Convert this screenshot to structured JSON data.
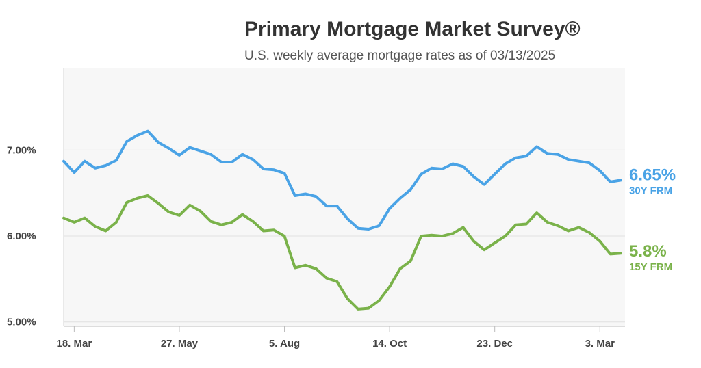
{
  "chart_data": {
    "type": "line",
    "title": "Primary Mortgage Market Survey®",
    "subtitle": "U.S. weekly average mortgage rates as of 03/13/2025",
    "ylim": [
      4.95,
      7.95
    ],
    "yticks": [
      5.0,
      6.0,
      7.0
    ],
    "ytick_labels": [
      "5.00%",
      "6.00%",
      "7.00%"
    ],
    "xtick_labels": [
      "18. Mar",
      "27. May",
      "5. Aug",
      "14. Oct",
      "23. Dec",
      "3. Mar"
    ],
    "xtick_index": [
      1,
      11,
      21,
      31,
      41,
      51
    ],
    "grid": true,
    "series": [
      {
        "name": "30Y FRM",
        "end_value": "6.65%",
        "color": "#4aa3e6",
        "values": [
          6.87,
          6.74,
          6.87,
          6.79,
          6.82,
          6.88,
          7.1,
          7.17,
          7.22,
          7.09,
          7.02,
          6.94,
          7.03,
          6.99,
          6.95,
          6.86,
          6.86,
          6.95,
          6.89,
          6.78,
          6.77,
          6.73,
          6.47,
          6.49,
          6.46,
          6.35,
          6.35,
          6.2,
          6.09,
          6.08,
          6.12,
          6.32,
          6.44,
          6.54,
          6.72,
          6.79,
          6.78,
          6.84,
          6.81,
          6.69,
          6.6,
          6.72,
          6.84,
          6.91,
          6.93,
          7.04,
          6.96,
          6.95,
          6.89,
          6.87,
          6.85,
          6.76,
          6.63,
          6.65
        ]
      },
      {
        "name": "15Y FRM",
        "end_value": "5.8%",
        "color": "#7ab24a",
        "values": [
          6.21,
          6.16,
          6.21,
          6.11,
          6.06,
          6.16,
          6.39,
          6.44,
          6.47,
          6.38,
          6.28,
          6.24,
          6.36,
          6.29,
          6.17,
          6.13,
          6.16,
          6.25,
          6.17,
          6.06,
          6.07,
          6.0,
          5.63,
          5.66,
          5.62,
          5.51,
          5.47,
          5.27,
          5.15,
          5.16,
          5.25,
          5.41,
          5.62,
          5.71,
          6.0,
          6.01,
          6.0,
          6.03,
          6.1,
          5.94,
          5.84,
          5.92,
          6.0,
          6.13,
          6.14,
          6.27,
          6.16,
          6.12,
          6.06,
          6.1,
          6.04,
          5.94,
          5.79,
          5.8
        ]
      }
    ]
  }
}
